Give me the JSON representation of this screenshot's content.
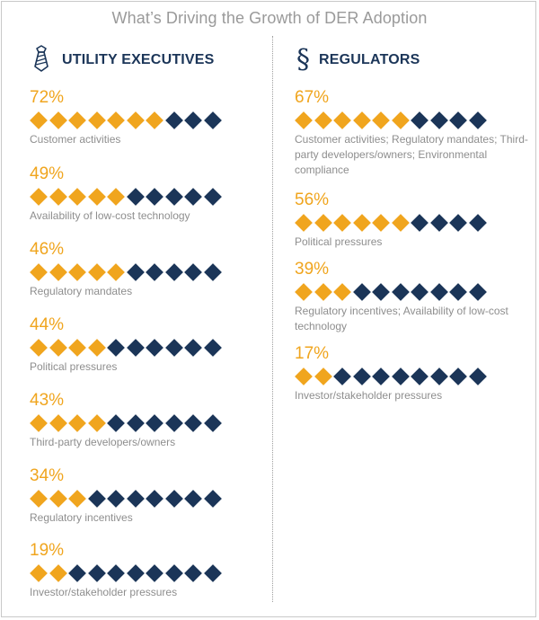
{
  "title": "What’s Driving the Growth of DER Adoption",
  "colors": {
    "accent": "#f0a51e",
    "navy": "#1b3558",
    "label": "#8e8e8e",
    "title": "#9a9a9a"
  },
  "total_diamonds": 10,
  "chart_data": [
    {
      "type": "pictograph",
      "title": "UTILITY EXECUTIVES",
      "icon": "necktie-icon",
      "values": [
        {
          "label": "Customer activities",
          "value": 72,
          "value_text": "72%",
          "filled": 7
        },
        {
          "label": "Availability of low-cost technology",
          "value": 49,
          "value_text": "49%",
          "filled": 5
        },
        {
          "label": "Regulatory mandates",
          "value": 46,
          "value_text": "46%",
          "filled": 5
        },
        {
          "label": "Political pressures",
          "value": 44,
          "value_text": "44%",
          "filled": 4
        },
        {
          "label": "Third-party developers/owners",
          "value": 43,
          "value_text": "43%",
          "filled": 4
        },
        {
          "label": "Regulatory incentives",
          "value": 34,
          "value_text": "34%",
          "filled": 3
        },
        {
          "label": "Investor/stakeholder pressures",
          "value": 19,
          "value_text": "19%",
          "filled": 2
        }
      ]
    },
    {
      "type": "pictograph",
      "title": "REGULATORS",
      "icon": "section-sign-icon",
      "values": [
        {
          "label": "Customer activities; Regulatory mandates; Third-party developers/owners; Environmental compliance",
          "value": 67,
          "value_text": "67%",
          "filled": 6
        },
        {
          "label": "Political pressures",
          "value": 56,
          "value_text": "56%",
          "filled": 6
        },
        {
          "label": "Regulatory incentives; Availability of low-cost technology",
          "value": 39,
          "value_text": "39%",
          "filled": 3
        },
        {
          "label": "Investor/stakeholder pressures",
          "value": 17,
          "value_text": "17%",
          "filled": 2
        }
      ]
    }
  ]
}
